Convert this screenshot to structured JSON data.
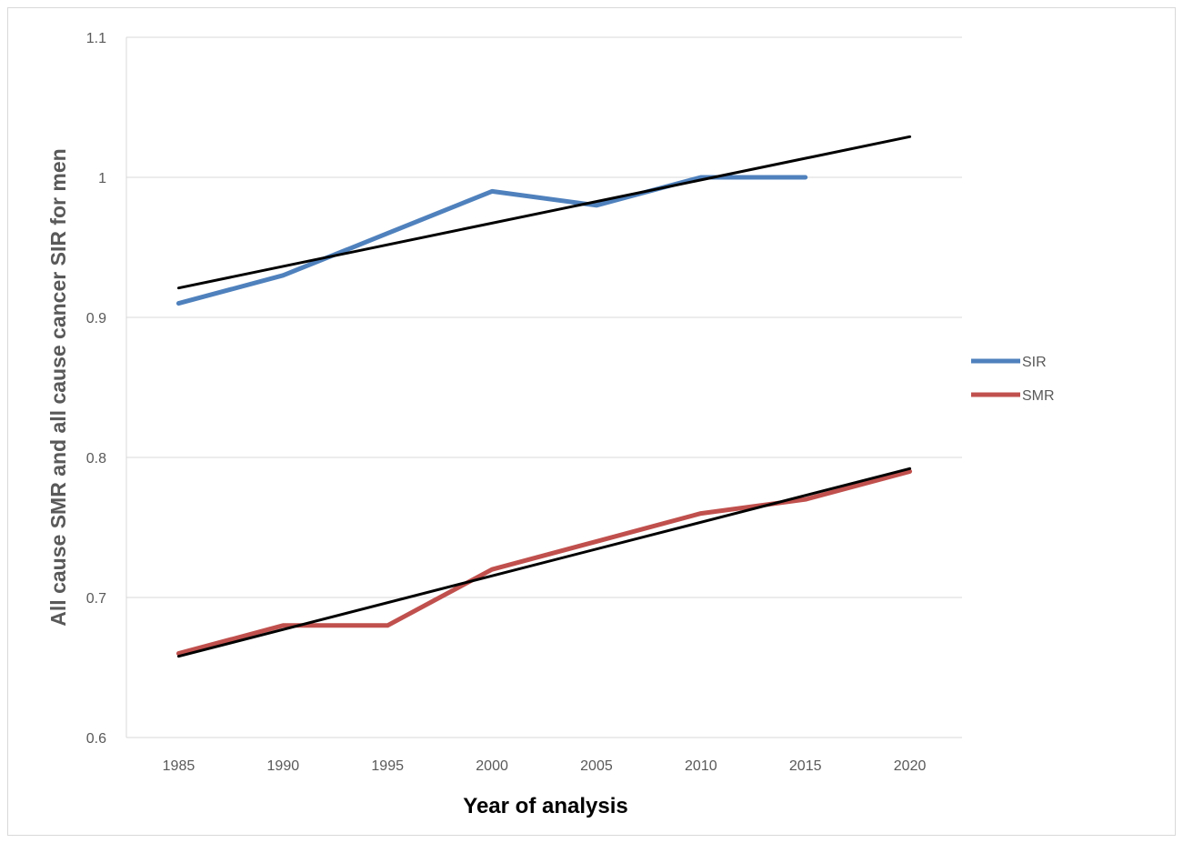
{
  "chart_data": {
    "type": "line",
    "title": "",
    "xlabel": "Year of analysis",
    "ylabel": "All cause SMR and all  cause cancer SIR for men",
    "categories": [
      "1985",
      "1990",
      "1995",
      "2000",
      "2005",
      "2010",
      "2015",
      "2020"
    ],
    "ylim": [
      0.6,
      1.1
    ],
    "yticks": [
      "0.6",
      "0.7",
      "0.8",
      "0.9",
      "1",
      "1.1"
    ],
    "grid": "horizontal",
    "legend_position": "right",
    "series": [
      {
        "name": "SIR",
        "color": "#4f81bd",
        "values": [
          0.91,
          0.93,
          0.96,
          0.99,
          0.98,
          1.0,
          1.0,
          null
        ]
      },
      {
        "name": "SMR",
        "color": "#c0504d",
        "values": [
          0.66,
          0.68,
          0.68,
          0.72,
          0.74,
          0.76,
          0.77,
          0.79
        ]
      }
    ],
    "trendlines": [
      {
        "of": "SIR",
        "color": "#000000",
        "start": 0.921,
        "end": 1.029
      },
      {
        "of": "SMR",
        "color": "#000000",
        "start": 0.658,
        "end": 0.792
      }
    ]
  }
}
